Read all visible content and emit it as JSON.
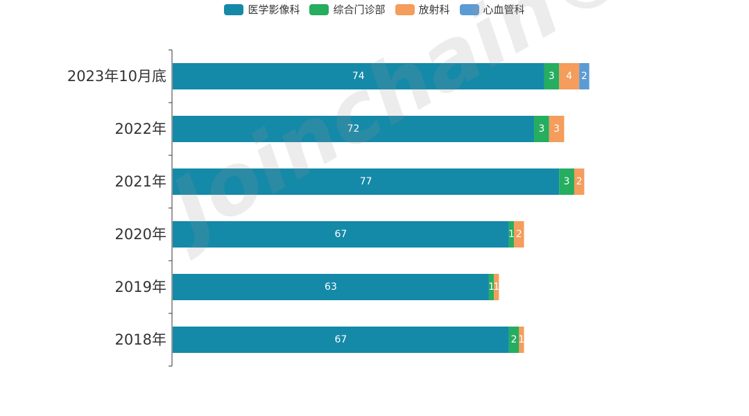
{
  "chart_data": {
    "type": "bar",
    "orientation": "horizontal",
    "stacked": true,
    "categories": [
      "2023年10月底",
      "2022年",
      "2021年",
      "2020年",
      "2019年",
      "2018年"
    ],
    "series": [
      {
        "name": "医学影像科",
        "color": "#1589a8",
        "values": [
          74,
          72,
          77,
          67,
          63,
          67
        ]
      },
      {
        "name": "综合门诊部",
        "color": "#25ad60",
        "values": [
          3,
          3,
          3,
          1,
          1,
          2
        ]
      },
      {
        "name": "放射科",
        "color": "#f49d5c",
        "values": [
          4,
          3,
          2,
          2,
          1,
          1
        ]
      },
      {
        "name": "心血管科",
        "color": "#5b9bd5",
        "values": [
          2,
          0,
          0,
          0,
          0,
          0
        ]
      }
    ],
    "legend_position": "top-center",
    "data_labels": true,
    "grid": false
  },
  "watermark": "Joinchain®"
}
